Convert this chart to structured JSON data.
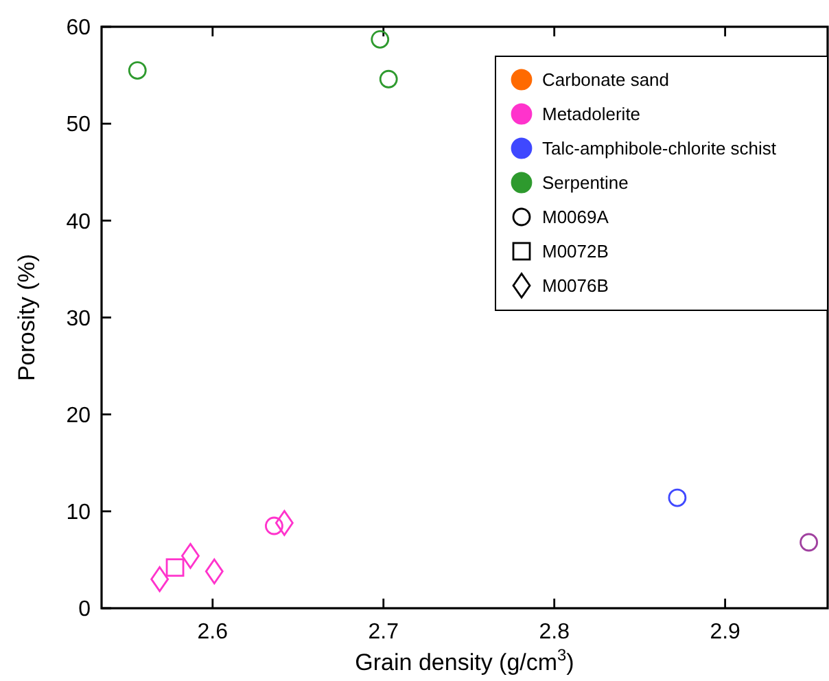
{
  "chart_data": {
    "type": "scatter",
    "xlabel": "Grain density (g/cm$^{3}$)",
    "ylabel": "Porosity (%)",
    "xlim": [
      2.535,
      2.96
    ],
    "xticks": [
      2.6,
      2.7,
      2.8,
      2.9
    ],
    "ylim": [
      0,
      60
    ],
    "yticks": [
      0,
      10,
      20,
      30,
      40,
      50,
      60
    ],
    "grid": false,
    "legend": "top right",
    "series": [
      {
        "color": "#ff33cc",
        "marker": "circle",
        "x": [
          2.636
        ],
        "values": [
          8.5
        ]
      },
      {
        "color": "#ff33cc",
        "marker": "diamond",
        "x": [
          2.642,
          2.569,
          2.587,
          2.601
        ],
        "values": [
          8.8,
          3.0,
          5.4,
          3.8
        ]
      },
      {
        "color": "#ff33cc",
        "marker": "square",
        "x": [
          2.578
        ],
        "values": [
          4.2
        ]
      },
      {
        "color": "#3f48ff",
        "marker": "circle",
        "x": [
          2.872
        ],
        "values": [
          11.4
        ]
      },
      {
        "color": "#2e9a2e",
        "marker": "circle",
        "x": [
          2.556,
          2.698,
          2.703
        ],
        "values": [
          55.5,
          58.7,
          54.6
        ]
      },
      {
        "color": "#a0409f",
        "marker": "circle",
        "x": [
          2.949
        ],
        "values": [
          6.8
        ]
      },
      {
        "name": "Carbonate sand",
        "color": "#ff6a00"
      },
      {
        "name": "Metadolerite",
        "color": "#ff33cc"
      },
      {
        "name": "Talc-amphibole-chlorite schist",
        "color": "#3f48ff"
      },
      {
        "name": "Serpentine",
        "color": "#2e9a2e"
      },
      {
        "name": "M0069A",
        "color": "#000000",
        "marker": "circle"
      },
      {
        "name": "M0072B",
        "color": "#000000",
        "marker": "square"
      },
      {
        "name": "M0076B",
        "color": "#000000",
        "marker": "diamond"
      }
    ]
  }
}
